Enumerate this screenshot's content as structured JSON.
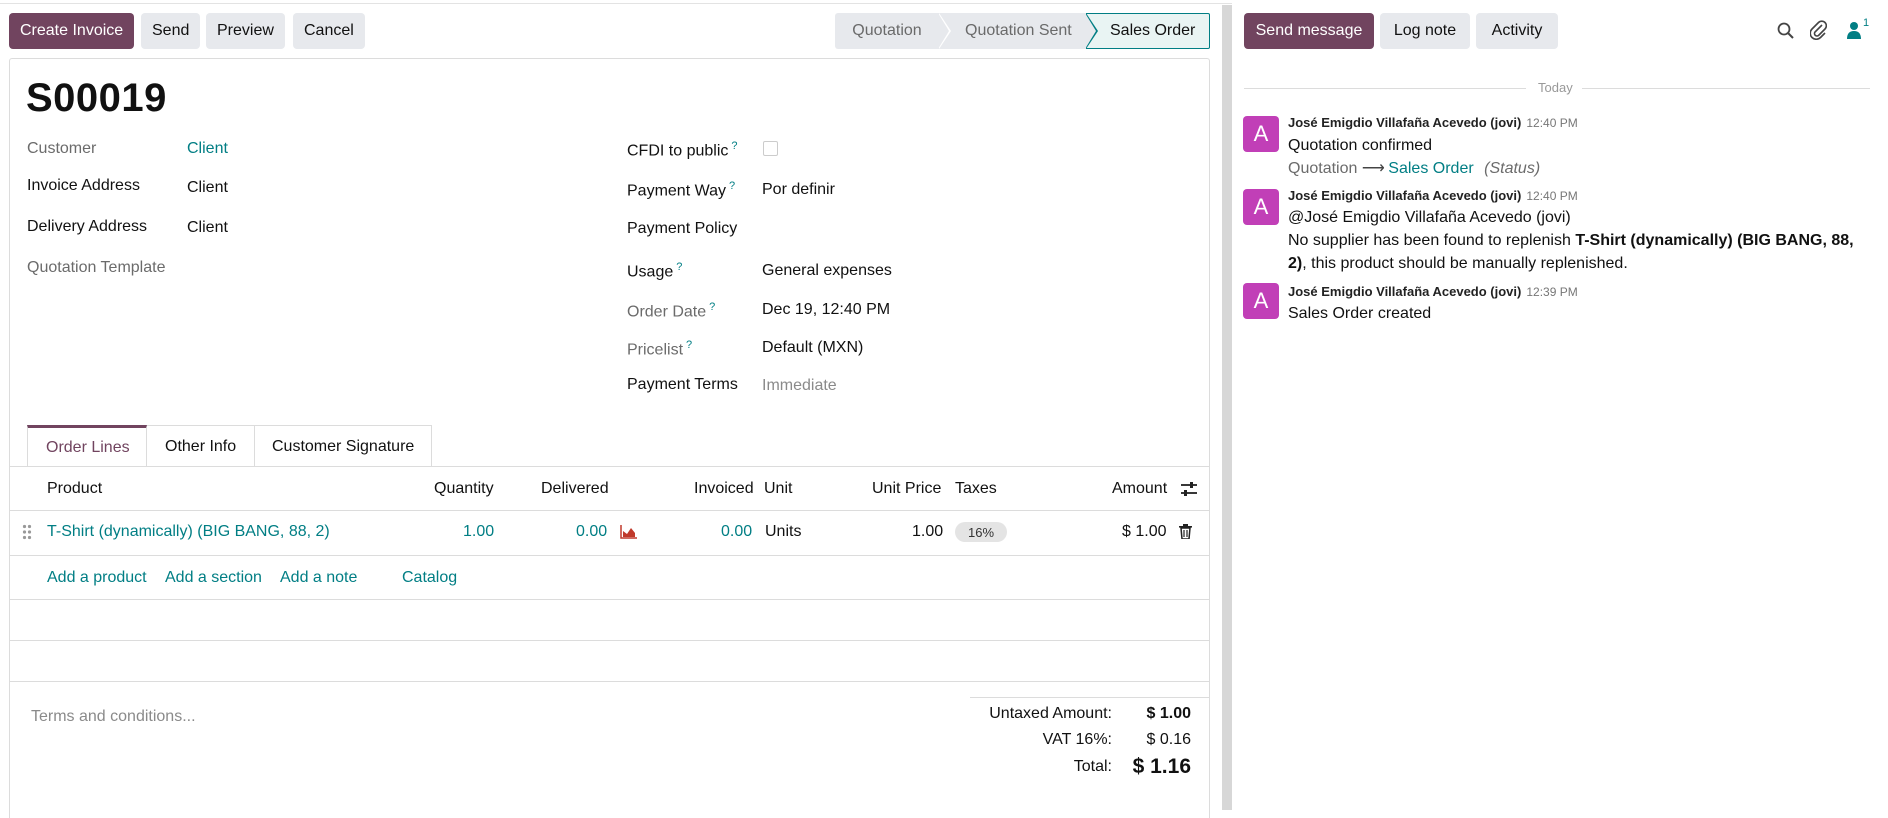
{
  "toolbar": {
    "create_invoice": "Create Invoice",
    "send": "Send",
    "preview": "Preview",
    "cancel": "Cancel"
  },
  "statusbar": {
    "stages": [
      "Quotation",
      "Quotation Sent",
      "Sales Order"
    ],
    "current": "Sales Order"
  },
  "order": {
    "name": "S00019",
    "customer_label": "Customer",
    "customer": "Client",
    "invoice_address_label": "Invoice Address",
    "invoice_address": "Client",
    "delivery_address_label": "Delivery Address",
    "delivery_address": "Client",
    "quotation_template_label": "Quotation Template",
    "cfdi_label": "CFDI to public",
    "cfdi_checked": false,
    "payment_way_label": "Payment Way",
    "payment_way": "Por definir",
    "payment_policy_label": "Payment Policy",
    "usage_label": "Usage",
    "usage": "General expenses",
    "order_date_label": "Order Date",
    "order_date": "Dec 19, 12:40 PM",
    "pricelist_label": "Pricelist",
    "pricelist": "Default (MXN)",
    "payment_terms_label": "Payment Terms",
    "payment_terms_placeholder": "Immediate",
    "help_mark": "?"
  },
  "tabs": [
    "Order Lines",
    "Other Info",
    "Customer Signature"
  ],
  "table": {
    "headers": {
      "product": "Product",
      "quantity": "Quantity",
      "delivered": "Delivered",
      "invoiced": "Invoiced",
      "unit": "Unit",
      "unit_price": "Unit Price",
      "taxes": "Taxes",
      "amount": "Amount"
    },
    "rows": [
      {
        "product": "T-Shirt (dynamically) (BIG BANG, 88, 2)",
        "quantity": "1.00",
        "delivered": "0.00",
        "invoiced": "0.00",
        "unit": "Units",
        "unit_price": "1.00",
        "tax": "16%",
        "amount": "$ 1.00"
      }
    ],
    "add_product": "Add a product",
    "add_section": "Add a section",
    "add_note": "Add a note",
    "catalog": "Catalog"
  },
  "terms_placeholder": "Terms and conditions...",
  "totals": {
    "untaxed_label": "Untaxed Amount:",
    "untaxed": "$ 1.00",
    "vat_label": "VAT 16%:",
    "vat": "$ 0.16",
    "total_label": "Total:",
    "total": "$ 1.16"
  },
  "chatter": {
    "send_message": "Send message",
    "log_note": "Log note",
    "activity": "Activity",
    "follower_count": "1",
    "today": "Today",
    "messages": [
      {
        "avatar": "A",
        "author": "José Emigdio Villafaña Acevedo (jovi)",
        "time": "12:40 PM",
        "text": "Quotation confirmed",
        "tracking_old": "Quotation",
        "tracking_new": "Sales Order",
        "tracking_field": "(Status)"
      },
      {
        "avatar": "A",
        "author": "José Emigdio Villafaña Acevedo (jovi)",
        "time": "12:40 PM",
        "mention": "@José Emigdio Villafaña Acevedo (jovi)",
        "text_before": "No supplier has been found to replenish ",
        "text_bold": "T-Shirt (dynamically) (BIG BANG, 88,",
        "text_bold2": "2)",
        "text_after": ", this product should be manually replenished."
      },
      {
        "avatar": "A",
        "author": "José Emigdio Villafaña Acevedo (jovi)",
        "time": "12:39 PM",
        "text": "Sales Order created"
      }
    ]
  },
  "colors": {
    "primary": "#71445f",
    "link": "#017e84",
    "avatar": "#c13fb7"
  }
}
